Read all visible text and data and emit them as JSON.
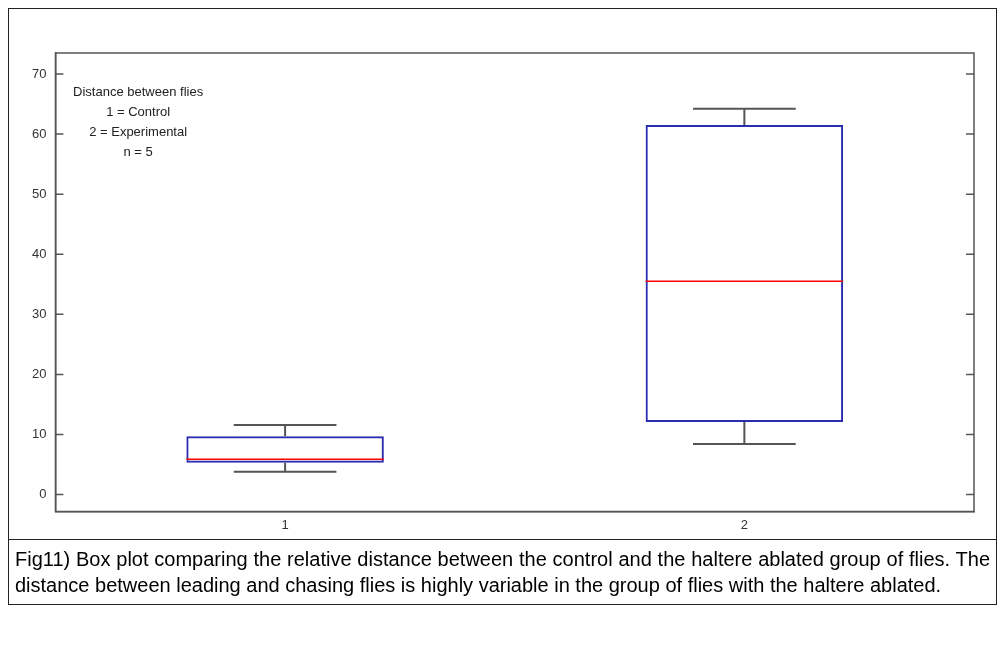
{
  "chart_data": {
    "type": "box",
    "categories": [
      "1",
      "2"
    ],
    "color": "#2b2bb0",
    "boxes": [
      {
        "low": 3.8,
        "q1": 5.3,
        "median": 5.9,
        "q3": 9.7,
        "high": 11.6
      },
      {
        "low": 8.4,
        "q1": 12.1,
        "median": 35.5,
        "q3": 61.5,
        "high": 64.2
      }
    ],
    "ylim": [
      -2.8,
      73.5
    ],
    "yticks": [
      0,
      10,
      20,
      30,
      40,
      50,
      60,
      70
    ],
    "grid": false,
    "legend": false,
    "annotations": [
      "Distance between flies\n1 = Control\n2 = Experimental\nn = 5",
      "Fig11) Box plot comparing the relative distance between the control and the haltere ablated group of flies. The distance between leading and chasing flies is highly variable in the group of flies with the haltere ablated."
    ]
  }
}
